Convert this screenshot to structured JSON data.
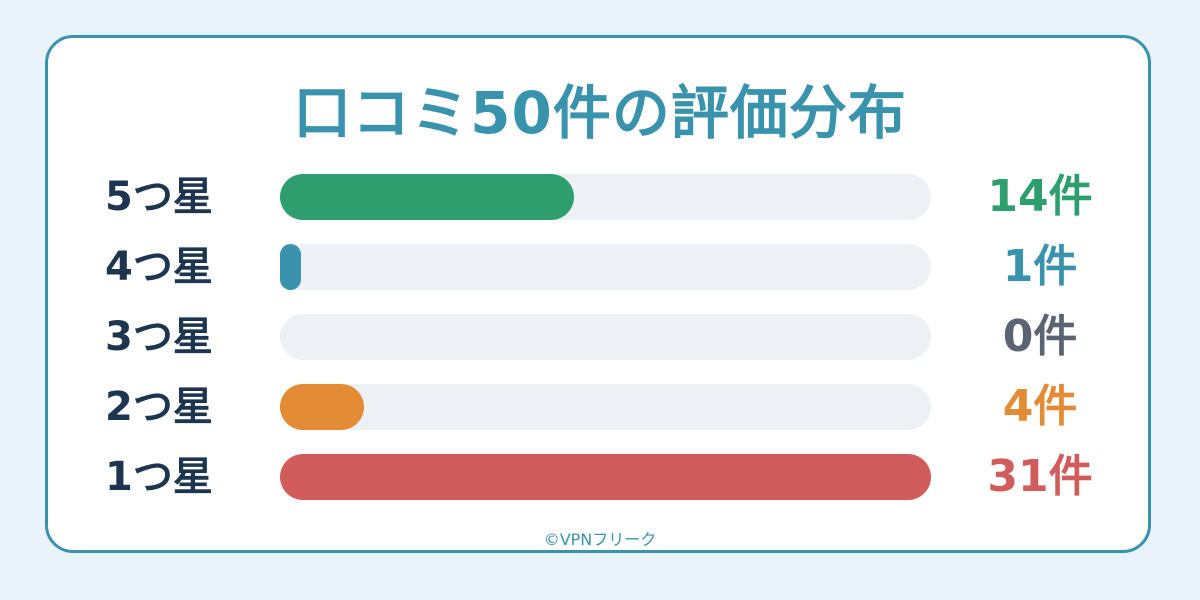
{
  "chart_data": {
    "type": "bar",
    "orientation": "horizontal",
    "title": "口コミ50件の評価分布",
    "categories": [
      "5つ星",
      "4つ星",
      "3つ星",
      "2つ星",
      "1つ星"
    ],
    "values": [
      14,
      1,
      0,
      4,
      31
    ],
    "value_labels": [
      "14件",
      "1件",
      "0件",
      "4件",
      "31件"
    ],
    "xlim": [
      0,
      31
    ],
    "colors": [
      "#2e9e6e",
      "#3a93ad",
      "#5b6472",
      "#e38b35",
      "#d15c5c"
    ],
    "grid": false,
    "legend": "none"
  },
  "credit": "©VPNフリーク"
}
